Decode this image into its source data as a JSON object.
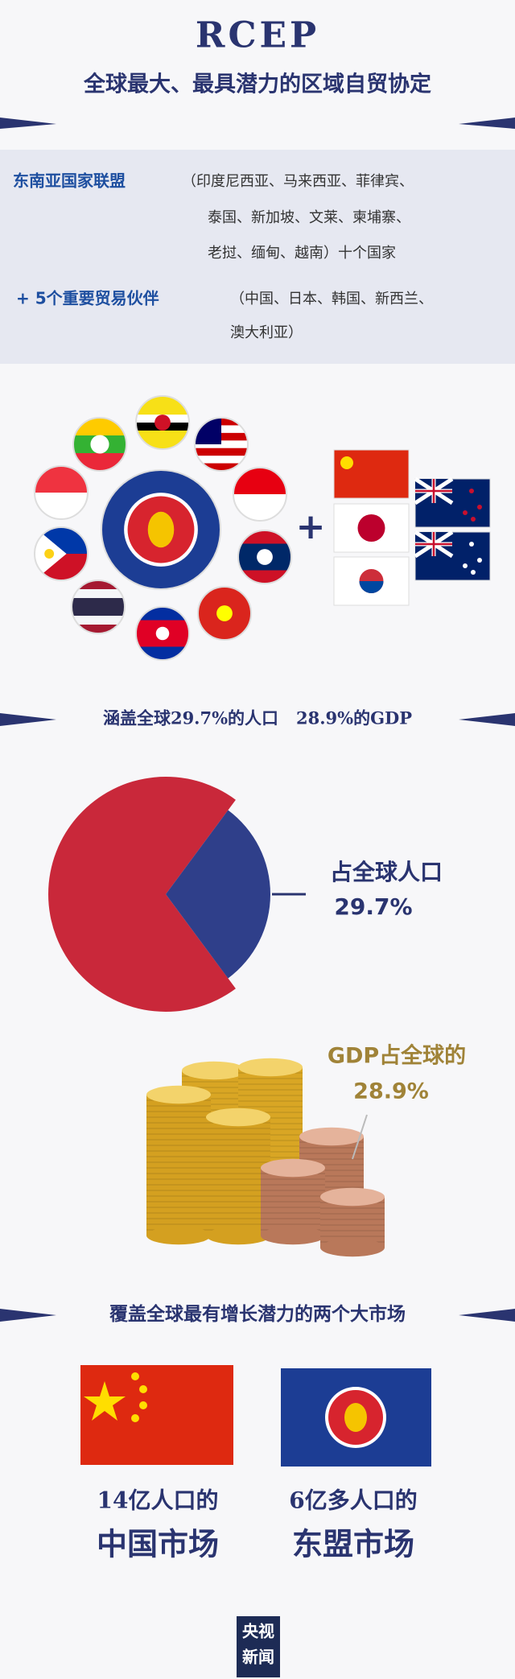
{
  "header": {
    "title": "RCEP",
    "subtitle": "全球最大、最具潜力的区域自贸协定"
  },
  "members": {
    "heading": "东南亚国家联盟",
    "detail_lines": [
      "（印度尼西亚、马来西亚、菲律宾、",
      "泰国、新加坡、文莱、柬埔寨、",
      "老挝、缅甸、越南）十个国家"
    ]
  },
  "partners": {
    "heading": "+ 5个重要贸易伙伴",
    "detail_lines": [
      "（中国、日本、韩国、新西兰、",
      "澳大利亚）"
    ]
  },
  "plus_sign": "+",
  "coverage": {
    "banner": "涵盖全球29.7%的人口   28.9%的GDP",
    "population": {
      "caption": "占全球人口",
      "value": 29.7,
      "label": "29.7%"
    },
    "gdp": {
      "caption": "GDP占全球的",
      "label": "28.9%"
    }
  },
  "markets": {
    "banner": "覆盖全球最有增长潜力的两个大市场",
    "items": [
      {
        "line1": "14亿人口的",
        "line2": "中国市场"
      },
      {
        "line1": "6亿多人口的",
        "line2": "东盟市场"
      }
    ]
  },
  "footer": {
    "logo": [
      "央视",
      "新闻"
    ]
  }
}
